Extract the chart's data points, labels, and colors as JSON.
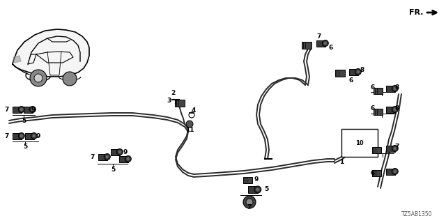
{
  "bg_color": "#ffffff",
  "part_number": "TZ5AB1350",
  "fig_width": 6.4,
  "fig_height": 3.2,
  "dpi": 100
}
